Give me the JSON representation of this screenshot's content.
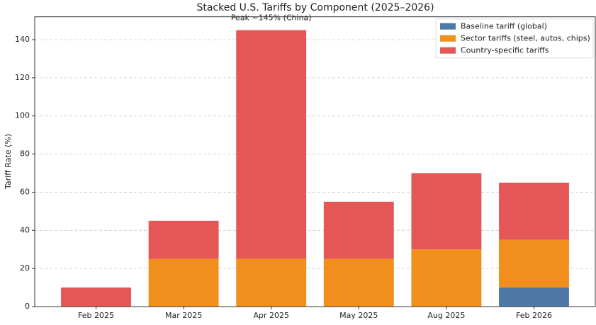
{
  "chart_data": {
    "type": "bar",
    "stacked": true,
    "title": "Stacked U.S. Tariffs by Component (2025–2026)",
    "y_label": "Tariff Rate (%)",
    "annotation": "Peak ~145% (China)",
    "categories": [
      "Feb 2025",
      "Mar 2025",
      "Apr 2025",
      "May 2025",
      "Aug 2025",
      "Feb 2026"
    ],
    "series": [
      {
        "name": "Baseline tariff (global)",
        "color": "#4e79a7",
        "values": [
          0,
          0,
          0,
          0,
          0,
          10
        ]
      },
      {
        "name": "Sector tariffs (steel, autos, chips)",
        "color": "#f28e1c",
        "values": [
          0,
          25,
          25,
          25,
          30,
          25
        ]
      },
      {
        "name": "Country-specific tariffs",
        "color": "#e45756",
        "values": [
          10,
          20,
          120,
          30,
          40,
          30
        ]
      }
    ],
    "ylim": [
      0,
      152
    ],
    "yticks": [
      0,
      20,
      40,
      60,
      80,
      100,
      120,
      140
    ],
    "grid": true,
    "legend": "upper right"
  }
}
